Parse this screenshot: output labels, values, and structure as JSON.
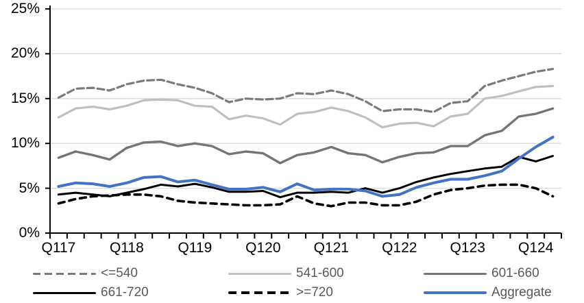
{
  "chart_data": {
    "type": "line",
    "title": "",
    "xlabel": "",
    "ylabel": "",
    "unit": "%",
    "grid": "horizontal",
    "legend_position": "bottom",
    "ylim": [
      0,
      25
    ],
    "ytick_step": 5,
    "ytick_labels": [
      "0%",
      "5%",
      "10%",
      "15%",
      "20%",
      "25%"
    ],
    "x_year_labels": [
      "Q117",
      "Q118",
      "Q119",
      "Q120",
      "Q121",
      "Q122",
      "Q123",
      "Q124"
    ],
    "x": [
      "Q1'17",
      "Q2'17",
      "Q3'17",
      "Q4'17",
      "Q1'18",
      "Q2'18",
      "Q3'18",
      "Q4'18",
      "Q1'19",
      "Q2'19",
      "Q3'19",
      "Q4'19",
      "Q1'20",
      "Q2'20",
      "Q3'20",
      "Q4'20",
      "Q1'21",
      "Q2'21",
      "Q3'21",
      "Q4'21",
      "Q1'22",
      "Q2'22",
      "Q3'22",
      "Q4'22",
      "Q1'23",
      "Q2'23",
      "Q3'23",
      "Q4'23",
      "Q1'24",
      "Q2'24"
    ],
    "series": [
      {
        "name": "<=540",
        "color": "#7a7a7a",
        "style": "dashed",
        "width": 3.2,
        "values": [
          15.1,
          16.1,
          16.2,
          15.9,
          16.6,
          17.0,
          17.1,
          16.6,
          16.2,
          15.6,
          14.6,
          15.0,
          14.9,
          15.0,
          15.6,
          15.5,
          15.9,
          15.5,
          14.7,
          13.6,
          13.8,
          13.8,
          13.5,
          14.5,
          14.7,
          16.4,
          17.0,
          17.5,
          18.0,
          18.3
        ]
      },
      {
        "name": "541-600",
        "color": "#bfbfbf",
        "style": "solid",
        "width": 3.2,
        "values": [
          12.9,
          13.9,
          14.1,
          13.8,
          14.2,
          14.8,
          14.9,
          14.8,
          14.2,
          14.1,
          12.7,
          13.1,
          12.8,
          12.1,
          13.3,
          13.5,
          14.0,
          13.6,
          12.9,
          11.8,
          12.2,
          12.3,
          11.9,
          13.0,
          13.3,
          15.0,
          15.3,
          15.8,
          16.3,
          16.4
        ]
      },
      {
        "name": "601-660",
        "color": "#757575",
        "style": "solid",
        "width": 3.4,
        "values": [
          8.4,
          9.1,
          8.7,
          8.2,
          9.5,
          10.1,
          10.2,
          9.7,
          10.0,
          9.7,
          8.8,
          9.1,
          8.9,
          7.8,
          8.7,
          9.0,
          9.6,
          8.9,
          8.7,
          7.9,
          8.5,
          8.9,
          9.0,
          9.7,
          9.7,
          10.9,
          11.4,
          13.0,
          13.3,
          13.9
        ]
      },
      {
        "name": "661-720",
        "color": "#000000",
        "style": "solid",
        "width": 3.0,
        "values": [
          4.3,
          4.5,
          4.3,
          4.1,
          4.5,
          4.9,
          5.4,
          5.2,
          5.5,
          5.1,
          4.6,
          4.6,
          4.7,
          4.0,
          4.5,
          4.5,
          4.6,
          4.5,
          5.0,
          4.5,
          5.0,
          5.7,
          6.2,
          6.6,
          6.9,
          7.2,
          7.4,
          8.5,
          8.0,
          8.6
        ]
      },
      {
        "name": ">=720",
        "color": "#000000",
        "style": "dashed",
        "width": 3.6,
        "values": [
          3.3,
          3.8,
          4.1,
          4.2,
          4.3,
          4.3,
          4.1,
          3.6,
          3.4,
          3.3,
          3.2,
          3.1,
          3.1,
          3.2,
          4.1,
          3.3,
          3.0,
          3.4,
          3.4,
          3.1,
          3.1,
          3.5,
          4.3,
          4.8,
          5.0,
          5.3,
          5.4,
          5.4,
          5.0,
          4.1
        ]
      },
      {
        "name": "Aggregate",
        "color": "#4472c4",
        "style": "solid",
        "width": 4.0,
        "values": [
          5.2,
          5.6,
          5.5,
          5.2,
          5.6,
          6.2,
          6.3,
          5.7,
          5.9,
          5.4,
          4.9,
          4.9,
          5.1,
          4.6,
          5.5,
          4.8,
          4.9,
          4.9,
          4.7,
          4.1,
          4.3,
          5.1,
          5.6,
          6.0,
          6.0,
          6.4,
          6.9,
          8.3,
          9.6,
          10.7
        ]
      }
    ],
    "colors": {
      "gridline": "#d9d9d9",
      "axis": "#000000",
      "legend_text": "#595959",
      "accent_blue": "#4472c4"
    }
  },
  "legend": {
    "items": [
      "<=540",
      "541-600",
      "601-660",
      "661-720",
      ">=720",
      "Aggregate"
    ]
  }
}
